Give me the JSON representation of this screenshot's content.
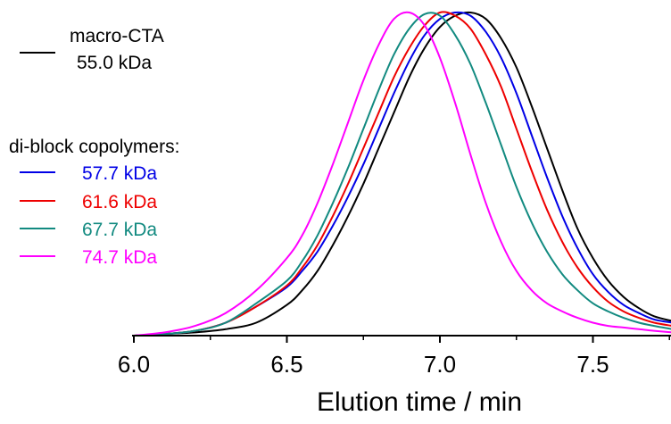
{
  "chart_data": {
    "type": "line",
    "title": "",
    "xlabel": "Elution time / min",
    "ylabel": "",
    "xlim": [
      6.0,
      7.76
    ],
    "ylim": [
      0,
      1.0
    ],
    "x_ticks": [
      "6.0",
      "6.5",
      "7.0",
      "7.5"
    ],
    "grid": false,
    "legend_placement": "top-left",
    "legend_group_title": "di-block copolymers:",
    "series": [
      {
        "name": "macro-CTA",
        "label_line2": "55.0 kDa",
        "color": "#000000",
        "x": [
          6.0,
          6.1,
          6.2,
          6.3,
          6.4,
          6.5,
          6.55,
          6.6,
          6.65,
          6.7,
          6.75,
          6.8,
          6.85,
          6.9,
          6.95,
          7.0,
          7.05,
          7.1,
          7.15,
          7.2,
          7.25,
          7.3,
          7.35,
          7.4,
          7.45,
          7.5,
          7.55,
          7.6,
          7.65,
          7.7,
          7.76
        ],
        "values": [
          0.0,
          0.005,
          0.01,
          0.02,
          0.04,
          0.095,
          0.14,
          0.2,
          0.28,
          0.37,
          0.47,
          0.58,
          0.69,
          0.8,
          0.89,
          0.955,
          0.99,
          1.0,
          0.98,
          0.92,
          0.83,
          0.71,
          0.58,
          0.45,
          0.33,
          0.24,
          0.17,
          0.12,
          0.085,
          0.06,
          0.045
        ]
      },
      {
        "name": "57.7 kDa",
        "color": "#0000e6",
        "x": [
          6.0,
          6.1,
          6.2,
          6.3,
          6.4,
          6.5,
          6.55,
          6.6,
          6.65,
          6.7,
          6.75,
          6.8,
          6.85,
          6.9,
          6.95,
          7.0,
          7.05,
          7.1,
          7.15,
          7.2,
          7.25,
          7.3,
          7.35,
          7.4,
          7.45,
          7.5,
          7.55,
          7.6,
          7.65,
          7.7,
          7.76
        ],
        "values": [
          0.0,
          0.005,
          0.015,
          0.04,
          0.09,
          0.15,
          0.2,
          0.26,
          0.34,
          0.43,
          0.53,
          0.64,
          0.75,
          0.85,
          0.93,
          0.98,
          1.0,
          0.99,
          0.94,
          0.86,
          0.75,
          0.62,
          0.49,
          0.37,
          0.27,
          0.19,
          0.135,
          0.095,
          0.07,
          0.05,
          0.04
        ]
      },
      {
        "name": "61.6 kDa",
        "color": "#ee0000",
        "x": [
          6.0,
          6.1,
          6.2,
          6.3,
          6.4,
          6.5,
          6.55,
          6.6,
          6.65,
          6.7,
          6.75,
          6.8,
          6.85,
          6.9,
          6.95,
          7.0,
          7.05,
          7.1,
          7.15,
          7.2,
          7.25,
          7.3,
          7.35,
          7.4,
          7.45,
          7.5,
          7.55,
          7.6,
          7.65,
          7.7,
          7.76
        ],
        "values": [
          0.0,
          0.005,
          0.015,
          0.04,
          0.09,
          0.155,
          0.21,
          0.28,
          0.37,
          0.47,
          0.58,
          0.69,
          0.8,
          0.89,
          0.96,
          1.0,
          0.99,
          0.95,
          0.87,
          0.77,
          0.64,
          0.51,
          0.39,
          0.29,
          0.21,
          0.15,
          0.105,
          0.075,
          0.055,
          0.04,
          0.03
        ]
      },
      {
        "name": "67.7 kDa",
        "color": "#128a80",
        "x": [
          6.0,
          6.1,
          6.2,
          6.3,
          6.4,
          6.5,
          6.55,
          6.6,
          6.65,
          6.7,
          6.75,
          6.8,
          6.85,
          6.9,
          6.95,
          7.0,
          7.05,
          7.1,
          7.15,
          7.2,
          7.25,
          7.3,
          7.35,
          7.4,
          7.45,
          7.5,
          7.55,
          7.6,
          7.65,
          7.7,
          7.76
        ],
        "values": [
          0.0,
          0.005,
          0.015,
          0.04,
          0.1,
          0.17,
          0.23,
          0.31,
          0.41,
          0.52,
          0.64,
          0.76,
          0.87,
          0.95,
          0.995,
          0.99,
          0.93,
          0.84,
          0.72,
          0.59,
          0.46,
          0.35,
          0.26,
          0.19,
          0.14,
          0.1,
          0.075,
          0.055,
          0.04,
          0.03,
          0.02
        ]
      },
      {
        "name": "74.7 kDa",
        "color": "#ff00ff",
        "x": [
          6.0,
          6.1,
          6.2,
          6.3,
          6.4,
          6.5,
          6.55,
          6.6,
          6.65,
          6.7,
          6.75,
          6.8,
          6.85,
          6.9,
          6.95,
          7.0,
          7.05,
          7.1,
          7.15,
          7.2,
          7.25,
          7.3,
          7.35,
          7.4,
          7.45,
          7.5,
          7.55,
          7.6,
          7.65,
          7.7,
          7.76
        ],
        "values": [
          0.0,
          0.01,
          0.03,
          0.07,
          0.14,
          0.24,
          0.31,
          0.41,
          0.53,
          0.66,
          0.79,
          0.9,
          0.98,
          1.0,
          0.96,
          0.86,
          0.72,
          0.56,
          0.41,
          0.29,
          0.2,
          0.14,
          0.1,
          0.075,
          0.055,
          0.04,
          0.03,
          0.025,
          0.02,
          0.015,
          0.01
        ]
      }
    ]
  }
}
